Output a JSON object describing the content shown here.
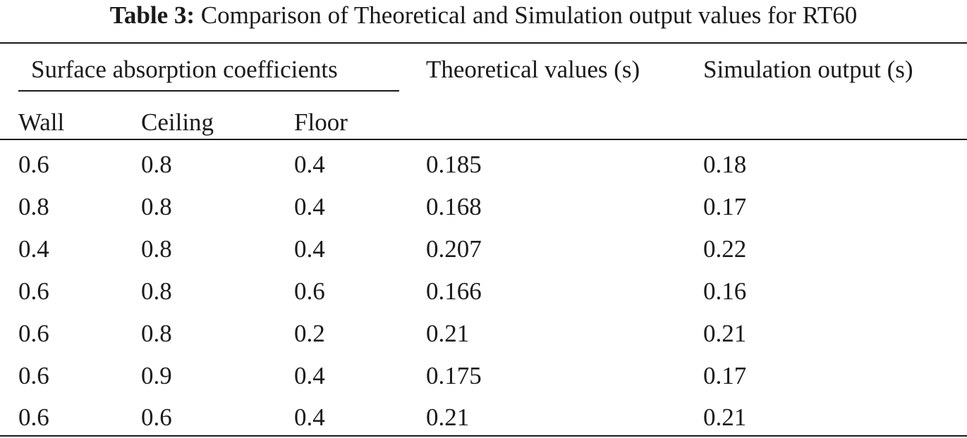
{
  "caption": {
    "label": "Table 3:",
    "text": " Comparison of Theoretical and Simulation output values for RT60"
  },
  "table": {
    "group_header": "Surface absorption coefficients",
    "theoretical_header": "Theoretical values (s)",
    "simulation_header": "Simulation output (s)",
    "sub_headers": [
      "Wall",
      "Ceiling",
      "Floor"
    ],
    "rows": [
      [
        "0.6",
        "0.8",
        "0.4",
        "0.185",
        "0.18"
      ],
      [
        "0.8",
        "0.8",
        "0.4",
        "0.168",
        "0.17"
      ],
      [
        "0.4",
        "0.8",
        "0.4",
        "0.207",
        "0.22"
      ],
      [
        "0.6",
        "0.8",
        "0.6",
        "0.166",
        "0.16"
      ],
      [
        "0.6",
        "0.8",
        "0.2",
        "0.21",
        "0.21"
      ],
      [
        "0.6",
        "0.9",
        "0.4",
        "0.175",
        "0.17"
      ],
      [
        "0.6",
        "0.6",
        "0.4",
        "0.21",
        "0.21"
      ]
    ]
  }
}
